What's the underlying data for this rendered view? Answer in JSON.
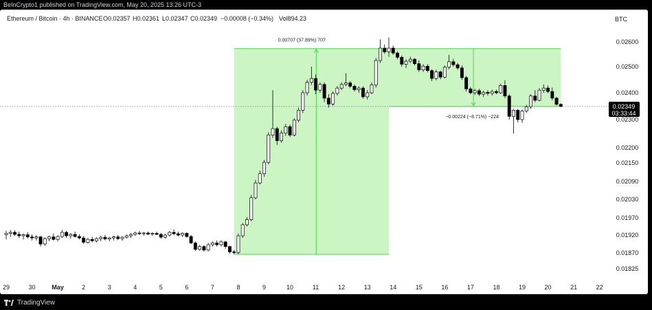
{
  "header": {
    "published": "BeInCrypto1 published on TradingView.com, May 20, 2025 13:26 UTC-3"
  },
  "legend": {
    "symbol": "Ethereum / Bitcoin · 4h · BINANCE",
    "open": "O0.02357",
    "high": "H0.02361",
    "low": "L0.02347",
    "close": "C0.02349",
    "change": "−0.00008 (−0.34%)",
    "volume": "Vol894.23"
  },
  "price_axis": {
    "currency": "BTC",
    "current_price": "0.02349",
    "countdown": "03:33:44"
  },
  "annotations": {
    "up_measure": "0.00707 (37.89%) 707",
    "down_measure": "−0.00224 (−8.71%) −224"
  },
  "footer": {
    "brand": "TradingView"
  },
  "colors": {
    "up_candle": "#ffffff",
    "down_candle": "#000000",
    "measure_fill": "#ccf5c4",
    "measure_line": "#4cd64c",
    "price_line": "#787b86",
    "label_bg": "#000000"
  },
  "chart_data": {
    "type": "candlestick",
    "title": "Ethereum / Bitcoin · 4h · BINANCE",
    "y_unit": "BTC",
    "y_ticks": [
      0.026,
      0.025,
      0.024,
      0.023,
      0.022,
      0.0215,
      0.0209,
      0.0203,
      0.0197,
      0.0192,
      0.0187,
      0.01825
    ],
    "y_tick_labels": [
      "0.02600",
      "0.02500",
      "0.02400",
      "0.02300",
      "0.02200",
      "0.02150",
      "0.02090",
      "0.02030",
      "0.01970",
      "0.01920",
      "0.01870",
      "0.01825"
    ],
    "x_tick_labels": [
      "29",
      "30",
      "May",
      "2",
      "3",
      "4",
      "5",
      "6",
      "7",
      "8",
      "9",
      "10",
      "11",
      "12",
      "13",
      "14",
      "15",
      "16",
      "17",
      "18",
      "19",
      "20",
      "21",
      "22"
    ],
    "current_price": 0.02349,
    "measure_up": {
      "from_date": "May 7 20:00",
      "to_date": "May 13 20:00",
      "low": 0.01866,
      "high": 0.02573,
      "change": "0.00707 (37.89%) 707"
    },
    "measure_down": {
      "from_date": "May 13 20:00",
      "to_date": "May 20 12:00",
      "high": 0.02573,
      "low": 0.02349,
      "change": "−0.00224 (−8.71%) −224"
    },
    "candles": [
      {
        "t": "Apr 29 00:00",
        "o": 0.01921,
        "h": 0.01933,
        "l": 0.01908,
        "c": 0.01925
      },
      {
        "t": "Apr 29 04:00",
        "o": 0.01925,
        "h": 0.01935,
        "l": 0.01915,
        "c": 0.01928
      },
      {
        "t": "Apr 29 08:00",
        "o": 0.01928,
        "h": 0.01934,
        "l": 0.01918,
        "c": 0.01922
      },
      {
        "t": "Apr 29 12:00",
        "o": 0.01922,
        "h": 0.0193,
        "l": 0.01912,
        "c": 0.01918
      },
      {
        "t": "Apr 29 16:00",
        "o": 0.01918,
        "h": 0.01925,
        "l": 0.01908,
        "c": 0.01921
      },
      {
        "t": "Apr 29 20:00",
        "o": 0.01921,
        "h": 0.01928,
        "l": 0.0191,
        "c": 0.01915
      },
      {
        "t": "Apr 30 00:00",
        "o": 0.01915,
        "h": 0.01922,
        "l": 0.01905,
        "c": 0.01912
      },
      {
        "t": "Apr 30 04:00",
        "o": 0.01912,
        "h": 0.0192,
        "l": 0.01905,
        "c": 0.01915
      },
      {
        "t": "Apr 30 08:00",
        "o": 0.01915,
        "h": 0.01918,
        "l": 0.01888,
        "c": 0.01895
      },
      {
        "t": "Apr 30 12:00",
        "o": 0.01895,
        "h": 0.01914,
        "l": 0.0189,
        "c": 0.0191
      },
      {
        "t": "Apr 30 16:00",
        "o": 0.0191,
        "h": 0.01918,
        "l": 0.01903,
        "c": 0.01915
      },
      {
        "t": "Apr 30 20:00",
        "o": 0.01915,
        "h": 0.01925,
        "l": 0.01905,
        "c": 0.01908
      },
      {
        "t": "May 1 00:00",
        "o": 0.01908,
        "h": 0.0192,
        "l": 0.01902,
        "c": 0.01916
      },
      {
        "t": "May 1 04:00",
        "o": 0.01916,
        "h": 0.01935,
        "l": 0.01912,
        "c": 0.01928
      },
      {
        "t": "May 1 08:00",
        "o": 0.01928,
        "h": 0.01932,
        "l": 0.01912,
        "c": 0.01918
      },
      {
        "t": "May 1 12:00",
        "o": 0.01918,
        "h": 0.01926,
        "l": 0.0191,
        "c": 0.01922
      },
      {
        "t": "May 1 16:00",
        "o": 0.01922,
        "h": 0.0193,
        "l": 0.01913,
        "c": 0.01916
      },
      {
        "t": "May 1 20:00",
        "o": 0.01916,
        "h": 0.01922,
        "l": 0.01908,
        "c": 0.01912
      },
      {
        "t": "May 2 00:00",
        "o": 0.01912,
        "h": 0.01918,
        "l": 0.01895,
        "c": 0.019
      },
      {
        "t": "May 2 04:00",
        "o": 0.019,
        "h": 0.01912,
        "l": 0.01896,
        "c": 0.01908
      },
      {
        "t": "May 2 08:00",
        "o": 0.01908,
        "h": 0.01915,
        "l": 0.019,
        "c": 0.01904
      },
      {
        "t": "May 2 12:00",
        "o": 0.01904,
        "h": 0.01914,
        "l": 0.019,
        "c": 0.0191
      },
      {
        "t": "May 2 16:00",
        "o": 0.0191,
        "h": 0.01918,
        "l": 0.01903,
        "c": 0.01914
      },
      {
        "t": "May 2 20:00",
        "o": 0.01914,
        "h": 0.0192,
        "l": 0.01905,
        "c": 0.01909
      },
      {
        "t": "May 3 00:00",
        "o": 0.01909,
        "h": 0.01915,
        "l": 0.01903,
        "c": 0.01912
      },
      {
        "t": "May 3 04:00",
        "o": 0.01912,
        "h": 0.01918,
        "l": 0.01905,
        "c": 0.01915
      },
      {
        "t": "May 3 08:00",
        "o": 0.01915,
        "h": 0.0192,
        "l": 0.01906,
        "c": 0.0191
      },
      {
        "t": "May 3 12:00",
        "o": 0.0191,
        "h": 0.01917,
        "l": 0.01904,
        "c": 0.01914
      },
      {
        "t": "May 3 16:00",
        "o": 0.01914,
        "h": 0.01922,
        "l": 0.0191,
        "c": 0.01918
      },
      {
        "t": "May 3 20:00",
        "o": 0.01918,
        "h": 0.01926,
        "l": 0.01912,
        "c": 0.01922
      },
      {
        "t": "May 4 00:00",
        "o": 0.01922,
        "h": 0.0193,
        "l": 0.01918,
        "c": 0.01926
      },
      {
        "t": "May 4 04:00",
        "o": 0.01926,
        "h": 0.01932,
        "l": 0.0192,
        "c": 0.01924
      },
      {
        "t": "May 4 08:00",
        "o": 0.01924,
        "h": 0.01929,
        "l": 0.01918,
        "c": 0.01926
      },
      {
        "t": "May 4 12:00",
        "o": 0.01926,
        "h": 0.0193,
        "l": 0.0192,
        "c": 0.01923
      },
      {
        "t": "May 4 16:00",
        "o": 0.01923,
        "h": 0.01928,
        "l": 0.01918,
        "c": 0.01925
      },
      {
        "t": "May 4 20:00",
        "o": 0.01925,
        "h": 0.0193,
        "l": 0.0192,
        "c": 0.01922
      },
      {
        "t": "May 5 00:00",
        "o": 0.01922,
        "h": 0.01926,
        "l": 0.0191,
        "c": 0.01914
      },
      {
        "t": "May 5 04:00",
        "o": 0.01914,
        "h": 0.01924,
        "l": 0.0191,
        "c": 0.0192
      },
      {
        "t": "May 5 08:00",
        "o": 0.0192,
        "h": 0.01932,
        "l": 0.01916,
        "c": 0.01928
      },
      {
        "t": "May 5 12:00",
        "o": 0.01928,
        "h": 0.01936,
        "l": 0.0192,
        "c": 0.01924
      },
      {
        "t": "May 5 16:00",
        "o": 0.01924,
        "h": 0.0193,
        "l": 0.01916,
        "c": 0.0192
      },
      {
        "t": "May 5 20:00",
        "o": 0.0192,
        "h": 0.01928,
        "l": 0.01915,
        "c": 0.01925
      },
      {
        "t": "May 6 00:00",
        "o": 0.01925,
        "h": 0.01928,
        "l": 0.01912,
        "c": 0.01916
      },
      {
        "t": "May 6 04:00",
        "o": 0.01916,
        "h": 0.0192,
        "l": 0.01895,
        "c": 0.01898
      },
      {
        "t": "May 6 08:00",
        "o": 0.01898,
        "h": 0.01902,
        "l": 0.01876,
        "c": 0.0188
      },
      {
        "t": "May 6 12:00",
        "o": 0.0188,
        "h": 0.01892,
        "l": 0.01876,
        "c": 0.01888
      },
      {
        "t": "May 6 16:00",
        "o": 0.01888,
        "h": 0.01892,
        "l": 0.01874,
        "c": 0.01878
      },
      {
        "t": "May 6 20:00",
        "o": 0.01878,
        "h": 0.01898,
        "l": 0.01874,
        "c": 0.01893
      },
      {
        "t": "May 7 00:00",
        "o": 0.01893,
        "h": 0.01902,
        "l": 0.01888,
        "c": 0.01898
      },
      {
        "t": "May 7 04:00",
        "o": 0.01898,
        "h": 0.01905,
        "l": 0.01888,
        "c": 0.01893
      },
      {
        "t": "May 7 08:00",
        "o": 0.01893,
        "h": 0.01906,
        "l": 0.01888,
        "c": 0.01901
      },
      {
        "t": "May 7 12:00",
        "o": 0.01901,
        "h": 0.01904,
        "l": 0.01882,
        "c": 0.01888
      },
      {
        "t": "May 7 16:00",
        "o": 0.01888,
        "h": 0.0189,
        "l": 0.01868,
        "c": 0.01873
      },
      {
        "t": "May 7 20:00",
        "o": 0.01873,
        "h": 0.01878,
        "l": 0.01866,
        "c": 0.01871
      },
      {
        "t": "May 8 00:00",
        "o": 0.01871,
        "h": 0.01925,
        "l": 0.01866,
        "c": 0.01918
      },
      {
        "t": "May 8 04:00",
        "o": 0.01918,
        "h": 0.01955,
        "l": 0.01912,
        "c": 0.0195
      },
      {
        "t": "May 8 08:00",
        "o": 0.0195,
        "h": 0.01972,
        "l": 0.01945,
        "c": 0.01965
      },
      {
        "t": "May 8 12:00",
        "o": 0.01965,
        "h": 0.02045,
        "l": 0.0196,
        "c": 0.02035
      },
      {
        "t": "May 8 16:00",
        "o": 0.02035,
        "h": 0.02095,
        "l": 0.0203,
        "c": 0.02085
      },
      {
        "t": "May 8 20:00",
        "o": 0.02085,
        "h": 0.02125,
        "l": 0.0208,
        "c": 0.02115
      },
      {
        "t": "May 9 00:00",
        "o": 0.02115,
        "h": 0.0216,
        "l": 0.02105,
        "c": 0.02152
      },
      {
        "t": "May 9 04:00",
        "o": 0.02152,
        "h": 0.02255,
        "l": 0.02145,
        "c": 0.02245
      },
      {
        "t": "May 9 08:00",
        "o": 0.02245,
        "h": 0.0241,
        "l": 0.02235,
        "c": 0.02268
      },
      {
        "t": "May 9 12:00",
        "o": 0.02268,
        "h": 0.02275,
        "l": 0.0221,
        "c": 0.02225
      },
      {
        "t": "May 9 16:00",
        "o": 0.02225,
        "h": 0.02262,
        "l": 0.02218,
        "c": 0.02252
      },
      {
        "t": "May 9 20:00",
        "o": 0.02252,
        "h": 0.02285,
        "l": 0.02242,
        "c": 0.02275
      },
      {
        "t": "May 10 00:00",
        "o": 0.02275,
        "h": 0.02282,
        "l": 0.02238,
        "c": 0.02245
      },
      {
        "t": "May 10 04:00",
        "o": 0.02245,
        "h": 0.02305,
        "l": 0.0224,
        "c": 0.02298
      },
      {
        "t": "May 10 08:00",
        "o": 0.02298,
        "h": 0.02345,
        "l": 0.0229,
        "c": 0.02335
      },
      {
        "t": "May 10 12:00",
        "o": 0.02335,
        "h": 0.0241,
        "l": 0.02325,
        "c": 0.024
      },
      {
        "t": "May 10 16:00",
        "o": 0.024,
        "h": 0.0245,
        "l": 0.0239,
        "c": 0.0244
      },
      {
        "t": "May 10 20:00",
        "o": 0.0244,
        "h": 0.025,
        "l": 0.0243,
        "c": 0.02455
      },
      {
        "t": "May 11 00:00",
        "o": 0.02455,
        "h": 0.0247,
        "l": 0.02395,
        "c": 0.0241
      },
      {
        "t": "May 11 04:00",
        "o": 0.0241,
        "h": 0.0244,
        "l": 0.024,
        "c": 0.02432
      },
      {
        "t": "May 11 08:00",
        "o": 0.02432,
        "h": 0.0244,
        "l": 0.02365,
        "c": 0.0238
      },
      {
        "t": "May 11 12:00",
        "o": 0.0238,
        "h": 0.02395,
        "l": 0.02345,
        "c": 0.02358
      },
      {
        "t": "May 11 16:00",
        "o": 0.02358,
        "h": 0.02405,
        "l": 0.02352,
        "c": 0.02398
      },
      {
        "t": "May 11 20:00",
        "o": 0.02398,
        "h": 0.02425,
        "l": 0.0239,
        "c": 0.02418
      },
      {
        "t": "May 12 00:00",
        "o": 0.02418,
        "h": 0.0244,
        "l": 0.0241,
        "c": 0.02432
      },
      {
        "t": "May 12 04:00",
        "o": 0.02432,
        "h": 0.02475,
        "l": 0.02425,
        "c": 0.02438
      },
      {
        "t": "May 12 08:00",
        "o": 0.02438,
        "h": 0.02445,
        "l": 0.02418,
        "c": 0.02425
      },
      {
        "t": "May 12 12:00",
        "o": 0.02425,
        "h": 0.02432,
        "l": 0.02405,
        "c": 0.02412
      },
      {
        "t": "May 12 16:00",
        "o": 0.02412,
        "h": 0.02425,
        "l": 0.024,
        "c": 0.02418
      },
      {
        "t": "May 12 20:00",
        "o": 0.02418,
        "h": 0.02425,
        "l": 0.02378,
        "c": 0.02385
      },
      {
        "t": "May 13 00:00",
        "o": 0.02385,
        "h": 0.0241,
        "l": 0.02375,
        "c": 0.024
      },
      {
        "t": "May 13 04:00",
        "o": 0.024,
        "h": 0.0244,
        "l": 0.02395,
        "c": 0.0243
      },
      {
        "t": "May 13 08:00",
        "o": 0.0243,
        "h": 0.02535,
        "l": 0.0242,
        "c": 0.02525
      },
      {
        "t": "May 13 12:00",
        "o": 0.02525,
        "h": 0.0261,
        "l": 0.02515,
        "c": 0.02575
      },
      {
        "t": "May 13 16:00",
        "o": 0.02575,
        "h": 0.0259,
        "l": 0.02552,
        "c": 0.0256
      },
      {
        "t": "May 13 20:00",
        "o": 0.0256,
        "h": 0.02618,
        "l": 0.0254,
        "c": 0.02575
      },
      {
        "t": "May 14 00:00",
        "o": 0.02575,
        "h": 0.02585,
        "l": 0.02548,
        "c": 0.02555
      },
      {
        "t": "May 14 04:00",
        "o": 0.02555,
        "h": 0.02562,
        "l": 0.0253,
        "c": 0.02538
      },
      {
        "t": "May 14 08:00",
        "o": 0.02538,
        "h": 0.02545,
        "l": 0.025,
        "c": 0.0251
      },
      {
        "t": "May 14 12:00",
        "o": 0.0251,
        "h": 0.0253,
        "l": 0.02495,
        "c": 0.02522
      },
      {
        "t": "May 14 16:00",
        "o": 0.02522,
        "h": 0.0254,
        "l": 0.02515,
        "c": 0.0253
      },
      {
        "t": "May 14 20:00",
        "o": 0.0253,
        "h": 0.02535,
        "l": 0.02505,
        "c": 0.02512
      },
      {
        "t": "May 15 00:00",
        "o": 0.02512,
        "h": 0.02525,
        "l": 0.0248,
        "c": 0.02488
      },
      {
        "t": "May 15 04:00",
        "o": 0.02488,
        "h": 0.0251,
        "l": 0.0248,
        "c": 0.02502
      },
      {
        "t": "May 15 08:00",
        "o": 0.02502,
        "h": 0.0251,
        "l": 0.02478,
        "c": 0.02485
      },
      {
        "t": "May 15 12:00",
        "o": 0.02485,
        "h": 0.0249,
        "l": 0.02445,
        "c": 0.02455
      },
      {
        "t": "May 15 16:00",
        "o": 0.02455,
        "h": 0.02488,
        "l": 0.02448,
        "c": 0.0248
      },
      {
        "t": "May 15 20:00",
        "o": 0.0248,
        "h": 0.02485,
        "l": 0.02452,
        "c": 0.0246
      },
      {
        "t": "May 16 00:00",
        "o": 0.0246,
        "h": 0.02505,
        "l": 0.02455,
        "c": 0.02498
      },
      {
        "t": "May 16 04:00",
        "o": 0.02498,
        "h": 0.02548,
        "l": 0.0249,
        "c": 0.0252
      },
      {
        "t": "May 16 08:00",
        "o": 0.0252,
        "h": 0.02532,
        "l": 0.025,
        "c": 0.02508
      },
      {
        "t": "May 16 12:00",
        "o": 0.02508,
        "h": 0.02515,
        "l": 0.02488,
        "c": 0.02495
      },
      {
        "t": "May 16 16:00",
        "o": 0.02495,
        "h": 0.02505,
        "l": 0.0245,
        "c": 0.02458
      },
      {
        "t": "May 16 20:00",
        "o": 0.02458,
        "h": 0.02465,
        "l": 0.02405,
        "c": 0.02415
      },
      {
        "t": "May 17 00:00",
        "o": 0.02415,
        "h": 0.02422,
        "l": 0.02395,
        "c": 0.024
      },
      {
        "t": "May 17 04:00",
        "o": 0.024,
        "h": 0.02415,
        "l": 0.02392,
        "c": 0.02408
      },
      {
        "t": "May 17 08:00",
        "o": 0.02408,
        "h": 0.02415,
        "l": 0.02388,
        "c": 0.02395
      },
      {
        "t": "May 17 12:00",
        "o": 0.02395,
        "h": 0.02408,
        "l": 0.02385,
        "c": 0.02402
      },
      {
        "t": "May 17 16:00",
        "o": 0.02402,
        "h": 0.0241,
        "l": 0.0239,
        "c": 0.02398
      },
      {
        "t": "May 17 20:00",
        "o": 0.02398,
        "h": 0.02412,
        "l": 0.0239,
        "c": 0.02405
      },
      {
        "t": "May 18 00:00",
        "o": 0.02405,
        "h": 0.02412,
        "l": 0.02395,
        "c": 0.024
      },
      {
        "t": "May 18 04:00",
        "o": 0.024,
        "h": 0.02435,
        "l": 0.02395,
        "c": 0.02428
      },
      {
        "t": "May 18 08:00",
        "o": 0.02428,
        "h": 0.02448,
        "l": 0.0238,
        "c": 0.02388
      },
      {
        "t": "May 18 12:00",
        "o": 0.02388,
        "h": 0.02395,
        "l": 0.023,
        "c": 0.02312
      },
      {
        "t": "May 18 16:00",
        "o": 0.02312,
        "h": 0.0234,
        "l": 0.0225,
        "c": 0.02335
      },
      {
        "t": "May 18 20:00",
        "o": 0.02335,
        "h": 0.0234,
        "l": 0.0229,
        "c": 0.023
      },
      {
        "t": "May 19 00:00",
        "o": 0.023,
        "h": 0.02338,
        "l": 0.02288,
        "c": 0.02332
      },
      {
        "t": "May 19 04:00",
        "o": 0.02332,
        "h": 0.02355,
        "l": 0.02325,
        "c": 0.02348
      },
      {
        "t": "May 19 08:00",
        "o": 0.02348,
        "h": 0.02395,
        "l": 0.0234,
        "c": 0.02388
      },
      {
        "t": "May 19 12:00",
        "o": 0.02388,
        "h": 0.0241,
        "l": 0.02365,
        "c": 0.02372
      },
      {
        "t": "May 19 16:00",
        "o": 0.02372,
        "h": 0.02418,
        "l": 0.02368,
        "c": 0.0241
      },
      {
        "t": "May 19 20:00",
        "o": 0.0241,
        "h": 0.02432,
        "l": 0.024,
        "c": 0.02418
      },
      {
        "t": "May 20 00:00",
        "o": 0.02418,
        "h": 0.02428,
        "l": 0.02398,
        "c": 0.02405
      },
      {
        "t": "May 20 04:00",
        "o": 0.02405,
        "h": 0.0242,
        "l": 0.02372,
        "c": 0.0238
      },
      {
        "t": "May 20 08:00",
        "o": 0.0238,
        "h": 0.02385,
        "l": 0.02352,
        "c": 0.02357
      },
      {
        "t": "May 20 12:00",
        "o": 0.02357,
        "h": 0.02361,
        "l": 0.02347,
        "c": 0.02349
      }
    ]
  }
}
